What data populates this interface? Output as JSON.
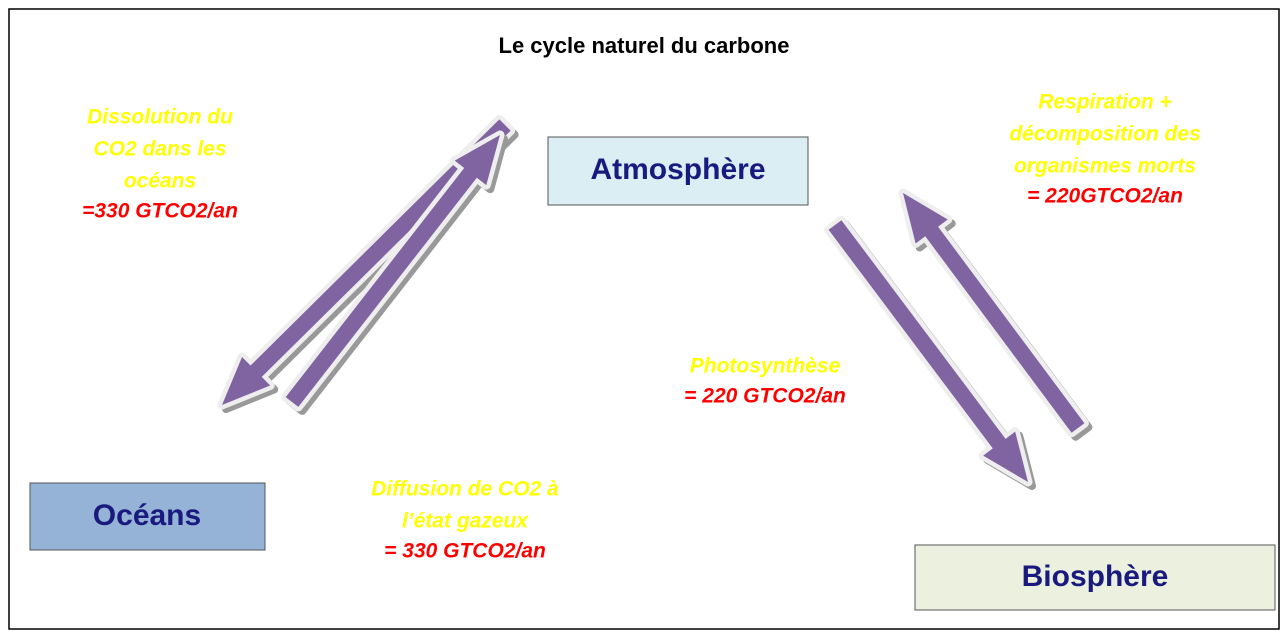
{
  "title": "Le cycle naturel du carbone",
  "nodes": [
    {
      "label": "Atmosphère"
    },
    {
      "label": "Océans"
    },
    {
      "label": "Biosphère"
    }
  ],
  "flows": [
    {
      "lines": [
        "Dissolution du",
        "CO2 dans les",
        "océans"
      ],
      "amount": "=330 GTCO2/an"
    },
    {
      "lines": [
        "Respiration +",
        "décomposition des",
        "organismes morts"
      ],
      "amount": "= 220GTCO2/an"
    },
    {
      "lines": [
        "Photosynthèse"
      ],
      "amount": "= 220 GTCO2/an"
    },
    {
      "lines": [
        "Diffusion de CO2 à",
        "l’état gazeux"
      ],
      "amount": "= 330 GTCO2/an"
    }
  ]
}
